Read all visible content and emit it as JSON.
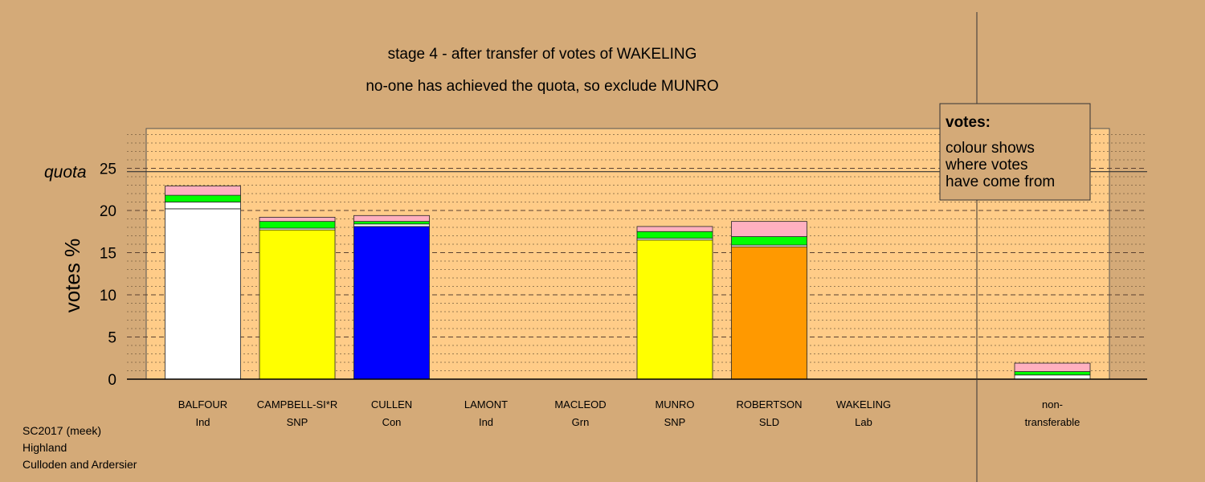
{
  "colors": {
    "background": "#d4aa78",
    "plot_bg": "#ffcc88",
    "transferred_green": "#00ff00",
    "transferred_pink": "#ffb0c0"
  },
  "chart_data": {
    "type": "bar",
    "stacked": true,
    "title_line1": "stage 4 - after transfer of votes of WAKELING",
    "title_line2": "no-one has achieved the quota, so exclude MUNRO",
    "ylabel": "votes %",
    "ylim": [
      0,
      29.5
    ],
    "yticks": [
      0,
      5,
      10,
      15,
      20,
      25
    ],
    "quota": 24.6,
    "quota_label": "quota",
    "legend": {
      "title": "votes:",
      "lines": [
        "colour shows",
        "where votes",
        "have come from"
      ],
      "placement": "top-right"
    },
    "footer": [
      "SC2017 (meek)",
      "Highland",
      "Culloden and Ardersier"
    ],
    "candidates": [
      {
        "name": "BALFOUR",
        "party": "Ind",
        "segments": [
          {
            "value": 20.2,
            "color": "#ffffff"
          },
          {
            "value": 0.8,
            "color": "#ffffff"
          },
          {
            "value": 0.8,
            "color": "#00ff00"
          },
          {
            "value": 1.1,
            "color": "#ffb0c0"
          }
        ]
      },
      {
        "name": "CAMPBELL-SI*R",
        "party": "SNP",
        "segments": [
          {
            "value": 17.7,
            "color": "#ffff00"
          },
          {
            "value": 0.2,
            "color": "#ffffff"
          },
          {
            "value": 0.8,
            "color": "#00ff00"
          },
          {
            "value": 0.5,
            "color": "#ffb0c0"
          }
        ]
      },
      {
        "name": "CULLEN",
        "party": "Con",
        "segments": [
          {
            "value": 18.1,
            "color": "#0000ff"
          },
          {
            "value": 0.3,
            "color": "#ffffff"
          },
          {
            "value": 0.3,
            "color": "#00ff00"
          },
          {
            "value": 0.7,
            "color": "#ffb0c0"
          }
        ]
      },
      {
        "name": "LAMONT",
        "party": "Ind",
        "segments": []
      },
      {
        "name": "MACLEOD",
        "party": "Grn",
        "segments": []
      },
      {
        "name": "MUNRO",
        "party": "SNP",
        "segments": [
          {
            "value": 16.5,
            "color": "#ffff00"
          },
          {
            "value": 0.2,
            "color": "#ffffff"
          },
          {
            "value": 0.8,
            "color": "#00ff00"
          },
          {
            "value": 0.6,
            "color": "#ffb0c0"
          }
        ]
      },
      {
        "name": "ROBERTSON",
        "party": "SLD",
        "segments": [
          {
            "value": 15.7,
            "color": "#ff9900"
          },
          {
            "value": 0.2,
            "color": "#ffffff"
          },
          {
            "value": 1.0,
            "color": "#00ff00"
          },
          {
            "value": 1.8,
            "color": "#ffb0c0"
          }
        ]
      },
      {
        "name": "WAKELING",
        "party": "Lab",
        "segments": []
      }
    ],
    "nontransferable": {
      "line1": "non-",
      "line2": "transferable",
      "segments": [
        {
          "value": 0.5,
          "color": "#ffffff"
        },
        {
          "value": 0.4,
          "color": "#00ff00"
        },
        {
          "value": 1.0,
          "color": "#ffb0c0"
        }
      ]
    }
  }
}
